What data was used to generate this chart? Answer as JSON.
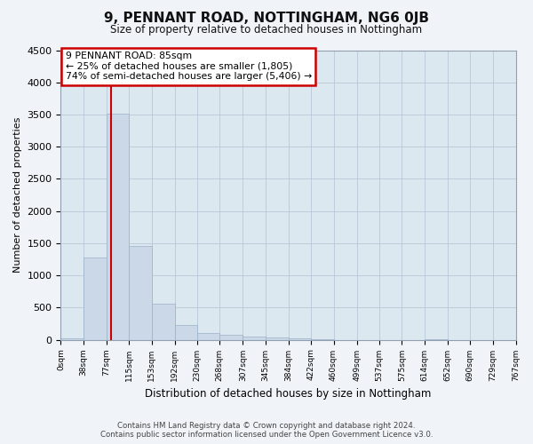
{
  "title": "9, PENNANT ROAD, NOTTINGHAM, NG6 0JB",
  "subtitle": "Size of property relative to detached houses in Nottingham",
  "xlabel": "Distribution of detached houses by size in Nottingham",
  "ylabel": "Number of detached properties",
  "footer_line1": "Contains HM Land Registry data © Crown copyright and database right 2024.",
  "footer_line2": "Contains public sector information licensed under the Open Government Licence v3.0.",
  "bar_color": "#cad8e8",
  "bar_edge_color": "#9ab0c8",
  "grid_color": "#b8c8d8",
  "plot_bg_color": "#dce8f0",
  "fig_bg_color": "#f0f4f8",
  "annotation_box_color": "#ffffff",
  "annotation_border_color": "#cc0000",
  "vline_color": "#cc0000",
  "property_size": 85,
  "property_label": "9 PENNANT ROAD: 85sqm",
  "pct_smaller_label": "← 25% of detached houses are smaller (1,805)",
  "pct_larger_label": "74% of semi-detached houses are larger (5,406) →",
  "bin_edges": [
    0,
    38,
    77,
    115,
    153,
    192,
    230,
    268,
    307,
    345,
    384,
    422,
    460,
    499,
    537,
    575,
    614,
    652,
    690,
    729,
    767
  ],
  "bar_heights": [
    25,
    1280,
    3510,
    1460,
    560,
    225,
    110,
    78,
    52,
    32,
    25,
    5,
    0,
    0,
    0,
    0,
    5,
    0,
    0,
    0
  ],
  "ylim": [
    0,
    4500
  ],
  "yticks": [
    0,
    500,
    1000,
    1500,
    2000,
    2500,
    3000,
    3500,
    4000,
    4500
  ]
}
